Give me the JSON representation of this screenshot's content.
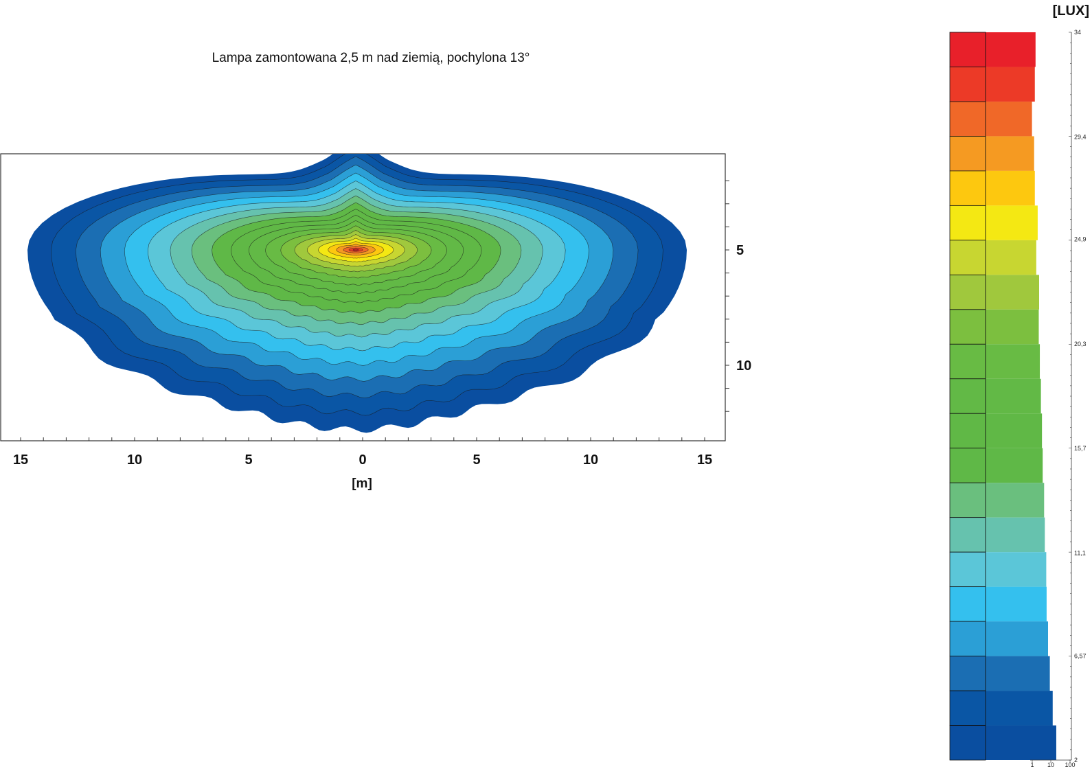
{
  "chart_data": {
    "type": "heatmap",
    "title": "Lampa zamontowana 2,5 m nad ziemią, pochylona 13°",
    "xlabel": "[m]",
    "ylabel": "",
    "x_ticks": [
      "15",
      "10",
      "5",
      "0",
      "5",
      "10",
      "15"
    ],
    "x_tick_values": [
      -15,
      -10,
      -5,
      0,
      5,
      10,
      15
    ],
    "y_ticks": [
      "5",
      "10"
    ],
    "y_tick_values": [
      5,
      10
    ],
    "xlim": [
      -16,
      16
    ],
    "ylim": [
      1,
      13.5
    ],
    "peak": {
      "x": -0.3,
      "y": 5.0,
      "value": 34
    },
    "colorbar": {
      "unit": "[LUX]",
      "min": 2,
      "max": 34,
      "tick_labels": [
        "34",
        "29,4",
        "24,9",
        "20,3",
        "15,7",
        "11,1",
        "6,57",
        "2"
      ],
      "tick_values": [
        34,
        29.4,
        24.9,
        20.3,
        15.7,
        11.1,
        6.57,
        2
      ],
      "levels_top_to_bottom": [
        "#e8202a",
        "#ec3a27",
        "#f06828",
        "#f59a22",
        "#fdc80f",
        "#f4e813",
        "#c8d631",
        "#a0c83d",
        "#7cbf3f",
        "#68bb44",
        "#62b946",
        "#60b846",
        "#5fb847",
        "#6abf7e",
        "#66c2ae",
        "#5bc6d8",
        "#34c0ee",
        "#2b9fd6",
        "#1b6eb3",
        "#0a56a5",
        "#0a4ea0"
      ],
      "bar_extent_right_column": [
        1.4,
        1.38,
        1.3,
        1.36,
        1.38,
        1.46,
        1.42,
        1.5,
        1.49,
        1.52,
        1.55,
        1.58,
        1.6,
        1.64,
        1.66,
        1.7,
        1.71,
        1.75,
        1.8,
        1.88,
        1.98
      ],
      "footer_labels": [
        "1",
        "10",
        "100"
      ]
    }
  }
}
